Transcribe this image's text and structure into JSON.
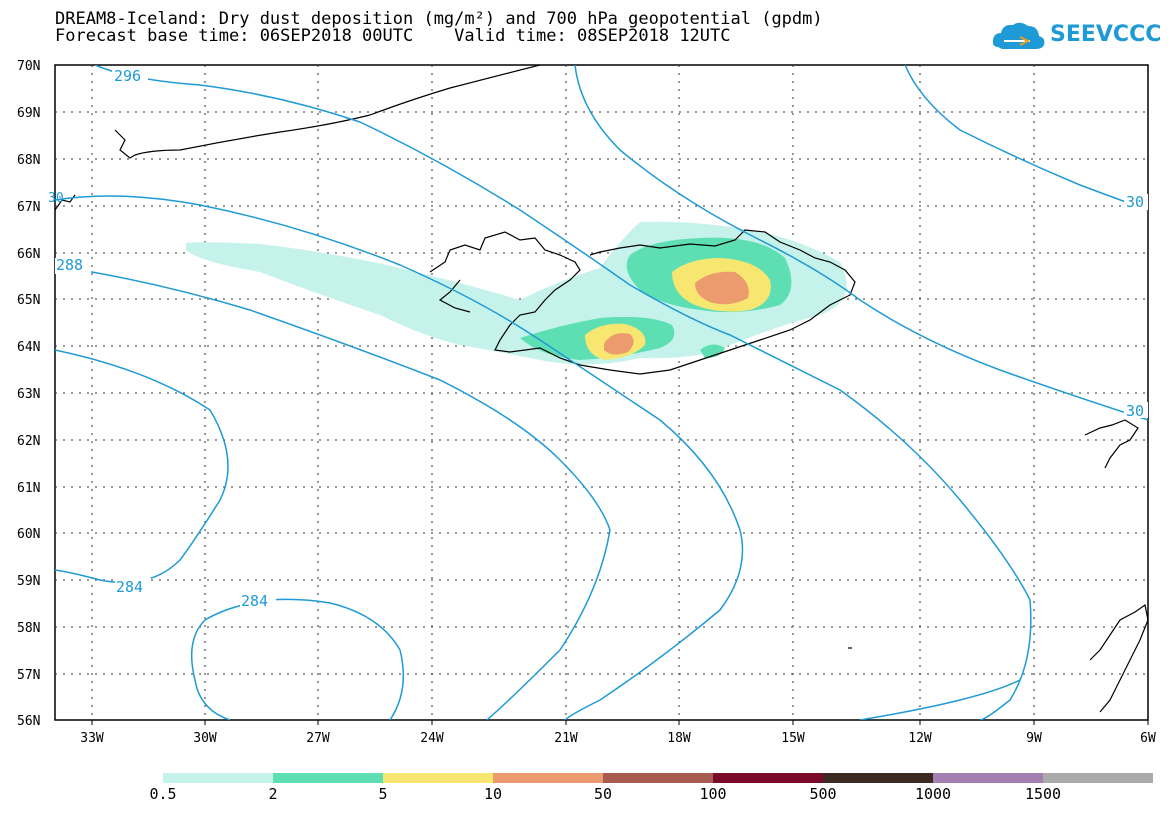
{
  "title": {
    "line1": "DREAM8-Iceland: Dry dust deposition (mg/m²) and 700 hPa geopotential (gpdm)",
    "line2": "Forecast base time: 06SEP2018 00UTC    Valid time: 08SEP2018 12UTC"
  },
  "logo": {
    "text": "SEEVCCC",
    "icon": "cloud-logo-icon",
    "color": "#1e9ad6"
  },
  "axes": {
    "lat_labels": [
      "70N",
      "69N",
      "68N",
      "67N",
      "66N",
      "65N",
      "64N",
      "63N",
      "62N",
      "61N",
      "60N",
      "59N",
      "58N",
      "57N",
      "56N"
    ],
    "lon_labels": [
      "33W",
      "30W",
      "27W",
      "24W",
      "21W",
      "18W",
      "15W",
      "12W",
      "9W",
      "6W"
    ]
  },
  "contours": {
    "color": "#1e9ad6",
    "labels": [
      "296",
      "288",
      "284",
      "284",
      "30",
      "30",
      "30"
    ]
  },
  "legend": {
    "colors": [
      "#c5f2ea",
      "#5ddfb3",
      "#f7e770",
      "#ec9b6f",
      "#a85c50",
      "#7a0a2a",
      "#3a2a20",
      "#a27fb0",
      "#aaaaaa"
    ],
    "labels": [
      "0.5",
      "2",
      "5",
      "10",
      "50",
      "100",
      "500",
      "1000",
      "1500"
    ]
  }
}
